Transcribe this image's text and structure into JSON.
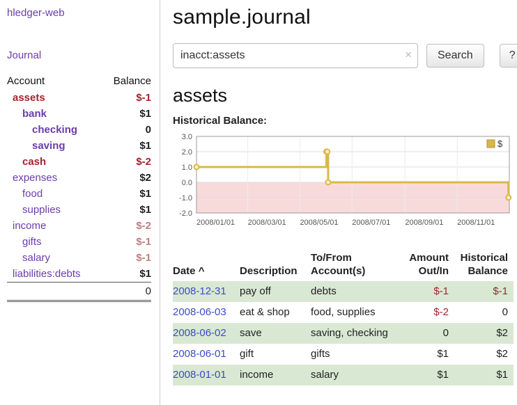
{
  "colors": {
    "link_purple": "#6a3da8",
    "date_blue": "#3b4bc8",
    "negative_strong": "#a3242e",
    "negative_muted": "#bd7f7f",
    "row_green": "#d9e8d2",
    "chart_line_gold": "#d9b849",
    "chart_negative_fill": "#f9dada"
  },
  "sidebar": {
    "app_title": "hledger-web",
    "nav_journal": "Journal",
    "headers": {
      "account": "Account",
      "balance": "Balance"
    },
    "accounts": [
      {
        "name": "assets",
        "balance": "$-1",
        "indent": 0,
        "emph": true,
        "name_negative": true,
        "balance_class": "neg-strong"
      },
      {
        "name": "bank",
        "balance": "$1",
        "indent": 1,
        "emph": true,
        "name_negative": false,
        "balance_class": ""
      },
      {
        "name": "checking",
        "balance": "0",
        "indent": 2,
        "emph": true,
        "name_negative": false,
        "balance_class": ""
      },
      {
        "name": "saving",
        "balance": "$1",
        "indent": 2,
        "emph": true,
        "name_negative": false,
        "balance_class": ""
      },
      {
        "name": "cash",
        "balance": "$-2",
        "indent": 1,
        "emph": true,
        "name_negative": true,
        "balance_class": "neg-strong"
      },
      {
        "name": "expenses",
        "balance": "$2",
        "indent": 0,
        "emph": false,
        "name_negative": false,
        "balance_class": ""
      },
      {
        "name": "food",
        "balance": "$1",
        "indent": 1,
        "emph": false,
        "name_negative": false,
        "balance_class": ""
      },
      {
        "name": "supplies",
        "balance": "$1",
        "indent": 1,
        "emph": false,
        "name_negative": false,
        "balance_class": ""
      },
      {
        "name": "income",
        "balance": "$-2",
        "indent": 0,
        "emph": false,
        "name_negative": false,
        "balance_class": "neg-muted"
      },
      {
        "name": "gifts",
        "balance": "$-1",
        "indent": 1,
        "emph": false,
        "name_negative": false,
        "balance_class": "neg-muted"
      },
      {
        "name": "salary",
        "balance": "$-1",
        "indent": 1,
        "emph": false,
        "name_negative": false,
        "balance_class": "neg-muted"
      },
      {
        "name": "liabilities:debts",
        "balance": "$1",
        "indent": 0,
        "emph": false,
        "name_negative": false,
        "balance_class": ""
      }
    ],
    "total": "0"
  },
  "main": {
    "title": "sample.journal",
    "search": {
      "value": "inacct:assets",
      "clear_icon": "×",
      "button_label": "Search",
      "help_label": "?"
    },
    "account_heading": "assets",
    "chart_heading": "Historical Balance:"
  },
  "chart_data": {
    "type": "line",
    "step": true,
    "title": "Historical Balance",
    "series": [
      {
        "name": "$",
        "points": [
          [
            "2008-01-01",
            1
          ],
          [
            "2008-06-01",
            2
          ],
          [
            "2008-06-02",
            2
          ],
          [
            "2008-06-03",
            0
          ],
          [
            "2008-12-31",
            -1
          ]
        ]
      }
    ],
    "ylim": [
      -2,
      3
    ],
    "y_ticks": [
      "3.0",
      "2.0",
      "1.0",
      "0.0",
      "-1.0",
      "-2.0"
    ],
    "x_ticks": [
      {
        "label": "2008/01/01",
        "date": "2008-01-01"
      },
      {
        "label": "2008/03/01",
        "date": "2008-03-01"
      },
      {
        "label": "2008/05/01",
        "date": "2008-05-01"
      },
      {
        "label": "2008/07/01",
        "date": "2008-07-01"
      },
      {
        "label": "2008/09/01",
        "date": "2008-09-01"
      },
      {
        "label": "2008/11/01",
        "date": "2008-11-01"
      }
    ],
    "x_range": [
      "2008-01-01",
      "2009-01-01"
    ],
    "grid": true,
    "legend": {
      "label": "$",
      "position": "top-right"
    }
  },
  "register": {
    "headers": {
      "date": "Date",
      "sort_indicator": "^",
      "description": "Description",
      "accounts": "To/From Account(s)",
      "amount": "Amount Out/In",
      "balance": "Historical Balance"
    },
    "rows": [
      {
        "date": "2008-12-31",
        "description": "pay off",
        "accounts": "debts",
        "amount": "$-1",
        "balance": "$-1",
        "amount_negative": true,
        "balance_negative": true,
        "shaded": true
      },
      {
        "date": "2008-06-03",
        "description": "eat & shop",
        "accounts": "food, supplies",
        "amount": "$-2",
        "balance": "0",
        "amount_negative": true,
        "balance_negative": false,
        "shaded": false
      },
      {
        "date": "2008-06-02",
        "description": "save",
        "accounts": "saving, checking",
        "amount": "0",
        "balance": "$2",
        "amount_negative": false,
        "balance_negative": false,
        "shaded": true
      },
      {
        "date": "2008-06-01",
        "description": "gift",
        "accounts": "gifts",
        "amount": "$1",
        "balance": "$2",
        "amount_negative": false,
        "balance_negative": false,
        "shaded": false
      },
      {
        "date": "2008-01-01",
        "description": "income",
        "accounts": "salary",
        "amount": "$1",
        "balance": "$1",
        "amount_negative": false,
        "balance_negative": false,
        "shaded": true
      }
    ]
  }
}
